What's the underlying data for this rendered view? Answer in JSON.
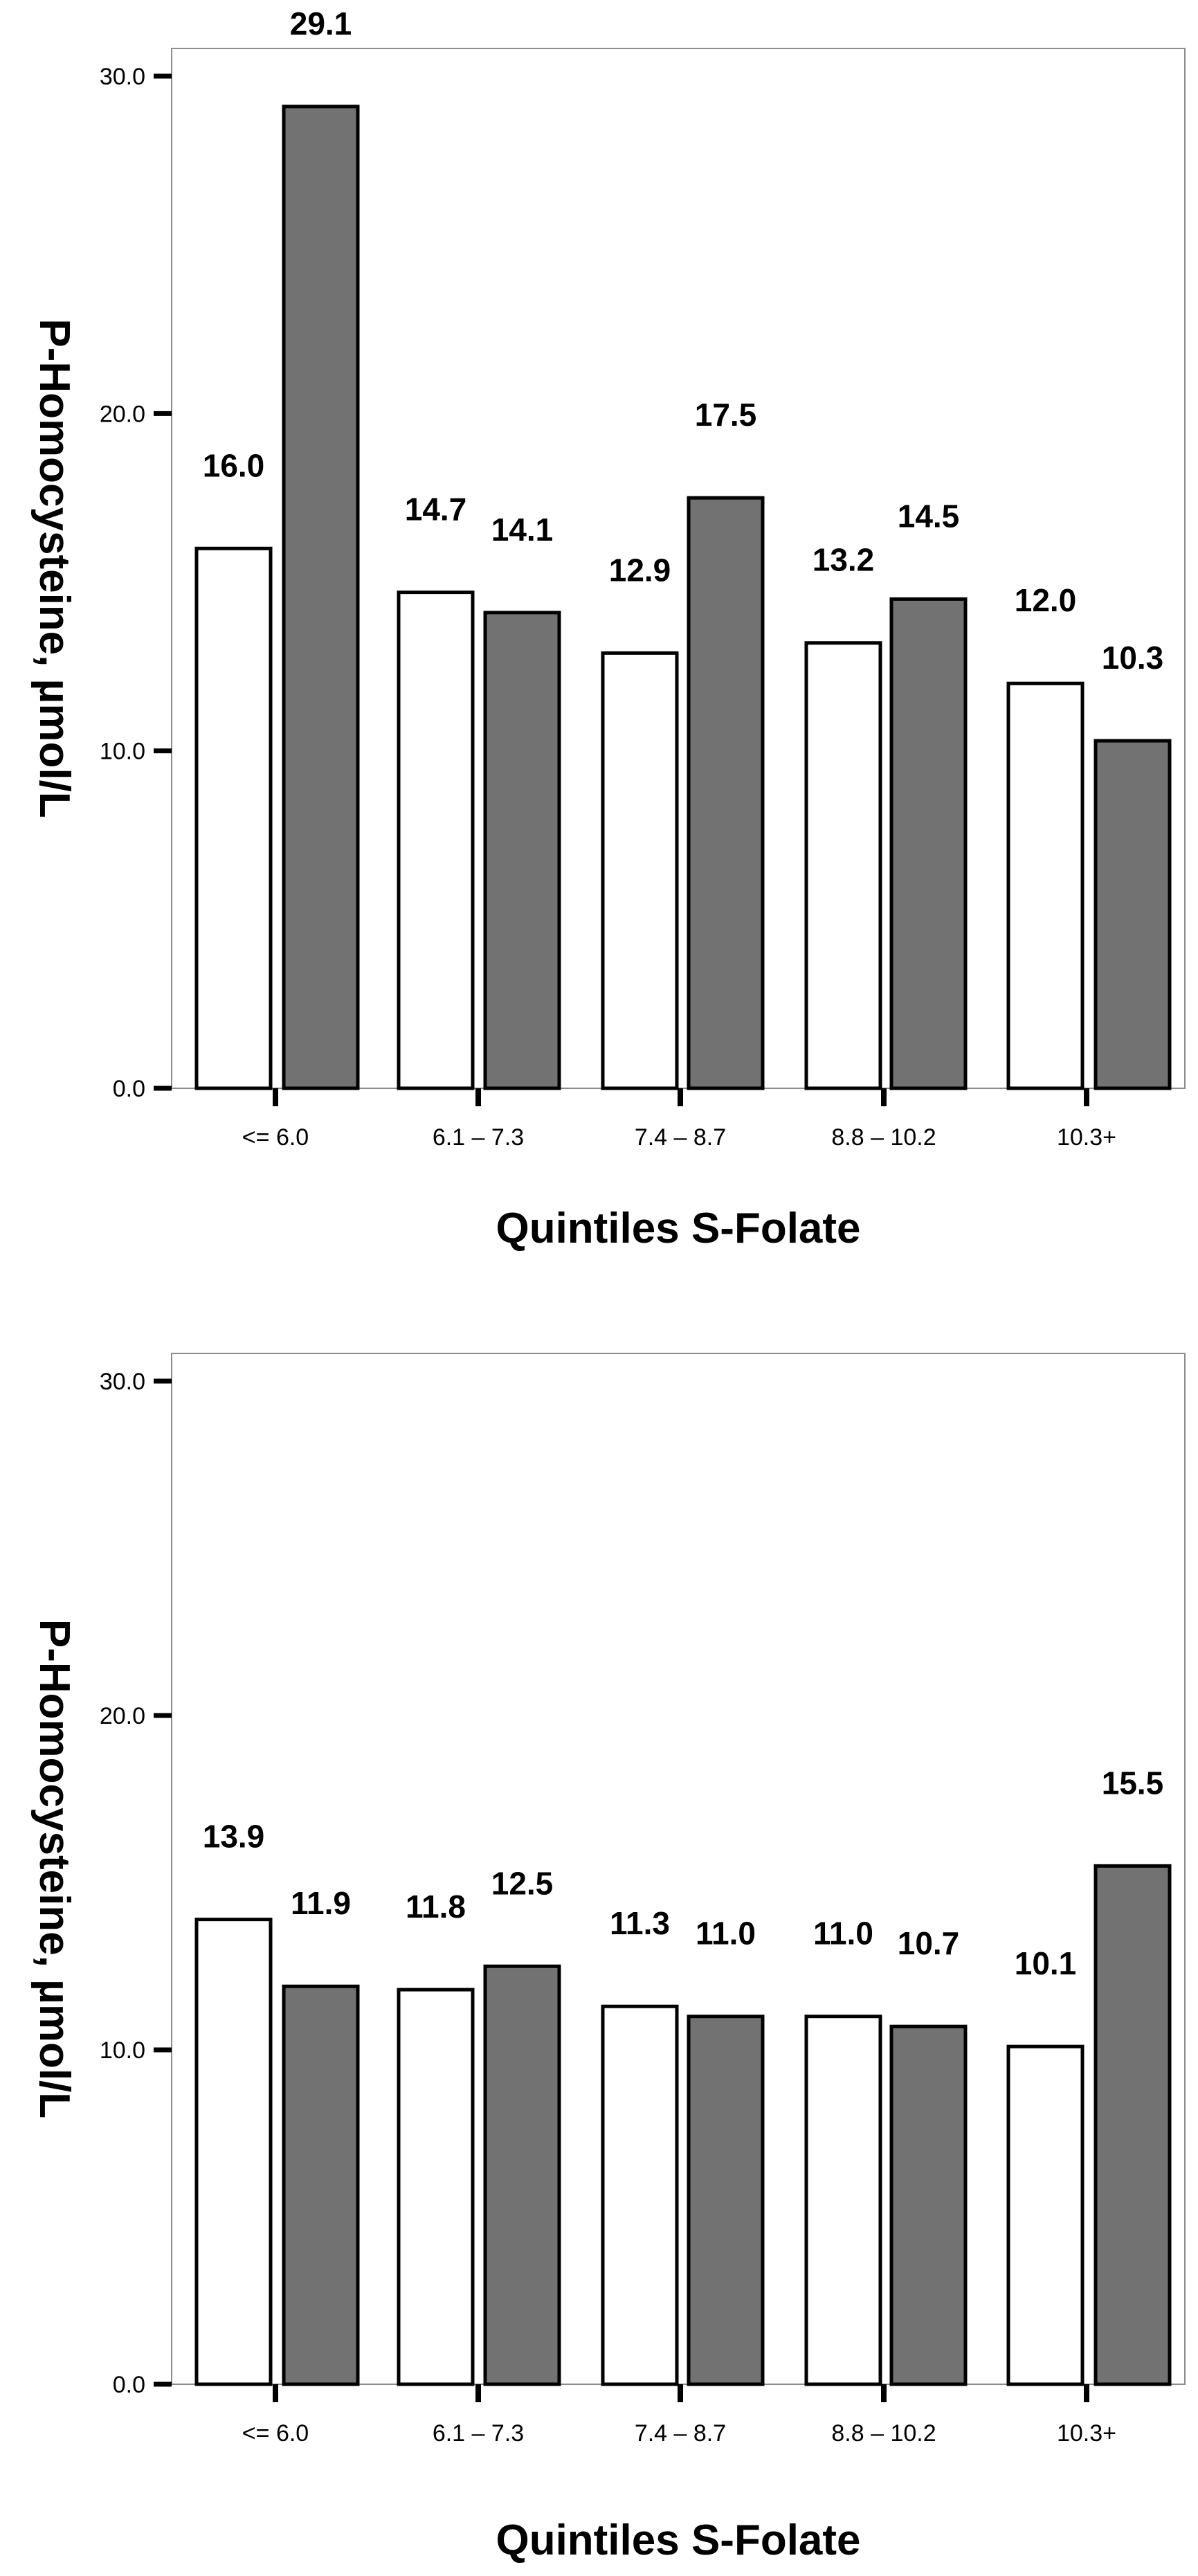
{
  "chart_data": [
    {
      "type": "bar",
      "title": "",
      "xlabel": "Quintiles S-Folate",
      "ylabel": "P-Homocysteine, µmol/L",
      "ylim": [
        0,
        30
      ],
      "yticks": [
        "0.0",
        "10.0",
        "20.0",
        "30.0"
      ],
      "grid": false,
      "categories": [
        "<= 6.0",
        "6.1 – 7.3",
        "7.4 – 8.7",
        "8.8 – 10.2",
        "10.3+"
      ],
      "series": [
        {
          "values": [
            16.0,
            14.7,
            12.9,
            13.2,
            12.0
          ],
          "labels": [
            "16.0",
            "14.7",
            "12.9",
            "13.2",
            "12.0"
          ],
          "color": "#ffffff"
        },
        {
          "values": [
            29.1,
            14.1,
            17.5,
            14.5,
            10.3
          ],
          "labels": [
            "29.1",
            "14.1",
            "17.5",
            "14.5",
            "10.3"
          ],
          "color": "#727272"
        }
      ]
    },
    {
      "type": "bar",
      "title": "",
      "xlabel": "Quintiles S-Folate",
      "ylabel": "P-Homocysteine, µmol/L",
      "ylim": [
        0,
        30
      ],
      "yticks": [
        "0.0",
        "10.0",
        "20.0",
        "30.0"
      ],
      "grid": false,
      "categories": [
        "<= 6.0",
        "6.1 – 7.3",
        "7.4 – 8.7",
        "8.8 – 10.2",
        "10.3+"
      ],
      "series": [
        {
          "values": [
            13.9,
            11.8,
            11.3,
            11.0,
            10.1
          ],
          "labels": [
            "13.9",
            "11.8",
            "11.3",
            "11.0",
            "10.1"
          ],
          "color": "#ffffff"
        },
        {
          "values": [
            11.9,
            12.5,
            11.0,
            10.7,
            15.5
          ],
          "labels": [
            "11.9",
            "12.5",
            "11.0",
            "10.7",
            "15.5"
          ],
          "color": "#727272"
        }
      ]
    }
  ]
}
